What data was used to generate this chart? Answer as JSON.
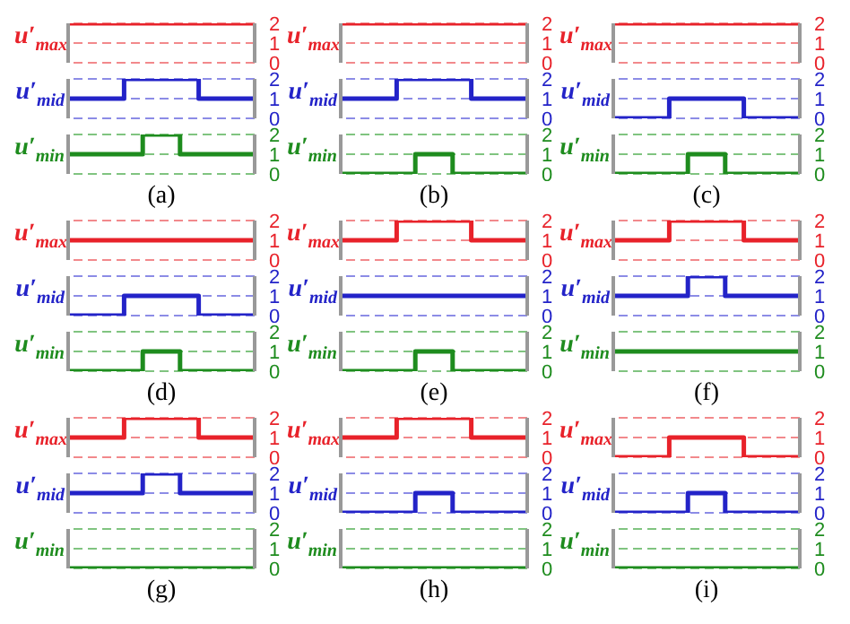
{
  "chart_data": [
    {
      "type": "step",
      "ylabel": "u′$_{max}$",
      "color": "#e8222a",
      "categories": [
        null,
        null,
        null,
        null,
        null,
        null,
        null,
        null,
        null,
        null,
        null
      ],
      "values": [
        2,
        2,
        2,
        2,
        2,
        2,
        2,
        2,
        2,
        2,
        2
      ],
      "ylim": [
        0,
        2
      ],
      "yticks": [
        0,
        1,
        2
      ],
      "ref_lines": [
        {
          "axis": "y",
          "value": 0,
          "color": "#f2898c",
          "line_style": "dashed"
        },
        {
          "axis": "y",
          "value": 1,
          "color": "#f2898c",
          "line_style": "dashed"
        },
        {
          "axis": "y",
          "value": 2,
          "color": "#f2898c",
          "line_style": "dashed"
        }
      ]
    },
    {
      "type": "step",
      "ylabel": "u′$_{mid}$",
      "color": "#2323c8",
      "categories": [
        null,
        null,
        null,
        null,
        null,
        null,
        null,
        null,
        null,
        null,
        null
      ],
      "values": [
        1,
        1,
        1,
        2,
        2,
        2,
        2,
        1,
        1,
        1,
        1
      ],
      "ylim": [
        0,
        2
      ],
      "yticks": [
        0,
        1,
        2
      ],
      "ref_lines": [
        {
          "axis": "y",
          "value": 0,
          "color": "#8c8ce6",
          "line_style": "dashed"
        },
        {
          "axis": "y",
          "value": 1,
          "color": "#8c8ce6",
          "line_style": "dashed"
        },
        {
          "axis": "y",
          "value": 2,
          "color": "#8c8ce6",
          "line_style": "dashed"
        }
      ]
    },
    {
      "type": "step",
      "ylabel": "u′$_{min}$",
      "color": "#1e8c1e",
      "categories": [
        null,
        null,
        null,
        null,
        null,
        null,
        null,
        null,
        null,
        null,
        null
      ],
      "values": [
        1,
        1,
        1,
        1,
        2,
        2,
        1,
        1,
        1,
        1,
        1
      ],
      "ylim": [
        0,
        2
      ],
      "yticks": [
        0,
        1,
        2
      ],
      "ref_lines": [
        {
          "axis": "y",
          "value": 0,
          "color": "#80c480",
          "line_style": "dashed"
        },
        {
          "axis": "y",
          "value": 1,
          "color": "#80c480",
          "line_style": "dashed"
        },
        {
          "axis": "y",
          "value": 2,
          "color": "#80c480",
          "line_style": "dashed"
        }
      ],
      "annotations": [
        "(a)"
      ]
    },
    {
      "type": "step",
      "ylabel": "u′$_{max}$",
      "color": "#e8222a",
      "categories": [
        null,
        null,
        null,
        null,
        null,
        null,
        null,
        null,
        null,
        null,
        null
      ],
      "values": [
        2,
        2,
        2,
        2,
        2,
        2,
        2,
        2,
        2,
        2,
        2
      ],
      "ylim": [
        0,
        2
      ],
      "yticks": [
        0,
        1,
        2
      ],
      "ref_lines": [
        {
          "axis": "y",
          "value": 0,
          "color": "#f2898c",
          "line_style": "dashed"
        },
        {
          "axis": "y",
          "value": 1,
          "color": "#f2898c",
          "line_style": "dashed"
        },
        {
          "axis": "y",
          "value": 2,
          "color": "#f2898c",
          "line_style": "dashed"
        }
      ]
    },
    {
      "type": "step",
      "ylabel": "u′$_{mid}$",
      "color": "#2323c8",
      "categories": [
        null,
        null,
        null,
        null,
        null,
        null,
        null,
        null,
        null,
        null,
        null
      ],
      "values": [
        1,
        1,
        1,
        2,
        2,
        2,
        2,
        1,
        1,
        1,
        1
      ],
      "ylim": [
        0,
        2
      ],
      "yticks": [
        0,
        1,
        2
      ],
      "ref_lines": [
        {
          "axis": "y",
          "value": 0,
          "color": "#8c8ce6",
          "line_style": "dashed"
        },
        {
          "axis": "y",
          "value": 1,
          "color": "#8c8ce6",
          "line_style": "dashed"
        },
        {
          "axis": "y",
          "value": 2,
          "color": "#8c8ce6",
          "line_style": "dashed"
        }
      ]
    },
    {
      "type": "step",
      "ylabel": "u′$_{min}$",
      "color": "#1e8c1e",
      "categories": [
        null,
        null,
        null,
        null,
        null,
        null,
        null,
        null,
        null,
        null,
        null
      ],
      "values": [
        0,
        0,
        0,
        0,
        1,
        1,
        0,
        0,
        0,
        0,
        0
      ],
      "ylim": [
        0,
        2
      ],
      "yticks": [
        0,
        1,
        2
      ],
      "ref_lines": [
        {
          "axis": "y",
          "value": 0,
          "color": "#80c480",
          "line_style": "dashed"
        },
        {
          "axis": "y",
          "value": 1,
          "color": "#80c480",
          "line_style": "dashed"
        },
        {
          "axis": "y",
          "value": 2,
          "color": "#80c480",
          "line_style": "dashed"
        }
      ],
      "annotations": [
        "(b)"
      ]
    },
    {
      "type": "step",
      "ylabel": "u′$_{max}$",
      "color": "#e8222a",
      "categories": [
        null,
        null,
        null,
        null,
        null,
        null,
        null,
        null,
        null,
        null,
        null
      ],
      "values": [
        2,
        2,
        2,
        2,
        2,
        2,
        2,
        2,
        2,
        2,
        2
      ],
      "ylim": [
        0,
        2
      ],
      "yticks": [
        0,
        1,
        2
      ],
      "ref_lines": [
        {
          "axis": "y",
          "value": 0,
          "color": "#f2898c",
          "line_style": "dashed"
        },
        {
          "axis": "y",
          "value": 1,
          "color": "#f2898c",
          "line_style": "dashed"
        },
        {
          "axis": "y",
          "value": 2,
          "color": "#f2898c",
          "line_style": "dashed"
        }
      ]
    },
    {
      "type": "step",
      "ylabel": "u′$_{mid}$",
      "color": "#2323c8",
      "categories": [
        null,
        null,
        null,
        null,
        null,
        null,
        null,
        null,
        null,
        null,
        null
      ],
      "values": [
        0,
        0,
        0,
        1,
        1,
        1,
        1,
        0,
        0,
        0,
        0
      ],
      "ylim": [
        0,
        2
      ],
      "yticks": [
        0,
        1,
        2
      ],
      "ref_lines": [
        {
          "axis": "y",
          "value": 0,
          "color": "#8c8ce6",
          "line_style": "dashed"
        },
        {
          "axis": "y",
          "value": 1,
          "color": "#8c8ce6",
          "line_style": "dashed"
        },
        {
          "axis": "y",
          "value": 2,
          "color": "#8c8ce6",
          "line_style": "dashed"
        }
      ]
    },
    {
      "type": "step",
      "ylabel": "u′$_{min}$",
      "color": "#1e8c1e",
      "categories": [
        null,
        null,
        null,
        null,
        null,
        null,
        null,
        null,
        null,
        null,
        null
      ],
      "values": [
        0,
        0,
        0,
        0,
        1,
        1,
        0,
        0,
        0,
        0,
        0
      ],
      "ylim": [
        0,
        2
      ],
      "yticks": [
        0,
        1,
        2
      ],
      "ref_lines": [
        {
          "axis": "y",
          "value": 0,
          "color": "#80c480",
          "line_style": "dashed"
        },
        {
          "axis": "y",
          "value": 1,
          "color": "#80c480",
          "line_style": "dashed"
        },
        {
          "axis": "y",
          "value": 2,
          "color": "#80c480",
          "line_style": "dashed"
        }
      ],
      "annotations": [
        "(c)"
      ]
    },
    {
      "type": "step",
      "ylabel": "u′$_{max}$",
      "color": "#e8222a",
      "categories": [
        null,
        null,
        null,
        null,
        null,
        null,
        null,
        null,
        null,
        null,
        null
      ],
      "values": [
        1,
        1,
        1,
        1,
        1,
        1,
        1,
        1,
        1,
        1,
        1
      ],
      "ylim": [
        0,
        2
      ],
      "yticks": [
        0,
        1,
        2
      ],
      "ref_lines": [
        {
          "axis": "y",
          "value": 0,
          "color": "#f2898c",
          "line_style": "dashed"
        },
        {
          "axis": "y",
          "value": 2,
          "color": "#f2898c",
          "line_style": "dashed"
        }
      ]
    },
    {
      "type": "step",
      "ylabel": "u′$_{mid}$",
      "color": "#2323c8",
      "categories": [
        null,
        null,
        null,
        null,
        null,
        null,
        null,
        null,
        null,
        null,
        null
      ],
      "values": [
        0,
        0,
        0,
        1,
        1,
        1,
        1,
        0,
        0,
        0,
        0
      ],
      "ylim": [
        0,
        2
      ],
      "yticks": [
        0,
        1,
        2
      ],
      "ref_lines": [
        {
          "axis": "y",
          "value": 0,
          "color": "#8c8ce6",
          "line_style": "dashed"
        },
        {
          "axis": "y",
          "value": 1,
          "color": "#8c8ce6",
          "line_style": "dashed"
        },
        {
          "axis": "y",
          "value": 2,
          "color": "#8c8ce6",
          "line_style": "dashed"
        }
      ]
    },
    {
      "type": "step",
      "ylabel": "u′$_{min}$",
      "color": "#1e8c1e",
      "categories": [
        null,
        null,
        null,
        null,
        null,
        null,
        null,
        null,
        null,
        null,
        null
      ],
      "values": [
        0,
        0,
        0,
        0,
        1,
        1,
        0,
        0,
        0,
        0,
        0
      ],
      "ylim": [
        0,
        2
      ],
      "yticks": [
        0,
        1,
        2
      ],
      "ref_lines": [
        {
          "axis": "y",
          "value": 0,
          "color": "#80c480",
          "line_style": "dashed"
        },
        {
          "axis": "y",
          "value": 1,
          "color": "#80c480",
          "line_style": "dashed"
        },
        {
          "axis": "y",
          "value": 2,
          "color": "#80c480",
          "line_style": "dashed"
        }
      ],
      "annotations": [
        "(d)"
      ]
    },
    {
      "type": "step",
      "ylabel": "u′$_{max}$",
      "color": "#e8222a",
      "categories": [
        null,
        null,
        null,
        null,
        null,
        null,
        null,
        null,
        null,
        null,
        null
      ],
      "values": [
        1,
        1,
        1,
        2,
        2,
        2,
        2,
        1,
        1,
        1,
        1
      ],
      "ylim": [
        0,
        2
      ],
      "yticks": [
        0,
        1,
        2
      ],
      "ref_lines": [
        {
          "axis": "y",
          "value": 0,
          "color": "#f2898c",
          "line_style": "dashed"
        },
        {
          "axis": "y",
          "value": 1,
          "color": "#f2898c",
          "line_style": "dashed"
        },
        {
          "axis": "y",
          "value": 2,
          "color": "#f2898c",
          "line_style": "dashed"
        }
      ]
    },
    {
      "type": "step",
      "ylabel": "u′$_{mid}$",
      "color": "#2323c8",
      "categories": [
        null,
        null,
        null,
        null,
        null,
        null,
        null,
        null,
        null,
        null,
        null
      ],
      "values": [
        1,
        1,
        1,
        1,
        1,
        1,
        1,
        1,
        1,
        1,
        1
      ],
      "ylim": [
        0,
        2
      ],
      "yticks": [
        0,
        1,
        2
      ],
      "ref_lines": [
        {
          "axis": "y",
          "value": 0,
          "color": "#8c8ce6",
          "line_style": "dashed"
        },
        {
          "axis": "y",
          "value": 2,
          "color": "#8c8ce6",
          "line_style": "dashed"
        }
      ]
    },
    {
      "type": "step",
      "ylabel": "u′$_{min}$",
      "color": "#1e8c1e",
      "categories": [
        null,
        null,
        null,
        null,
        null,
        null,
        null,
        null,
        null,
        null,
        null
      ],
      "values": [
        0,
        0,
        0,
        0,
        1,
        1,
        0,
        0,
        0,
        0,
        0
      ],
      "ylim": [
        0,
        2
      ],
      "yticks": [
        0,
        1,
        2
      ],
      "ref_lines": [
        {
          "axis": "y",
          "value": 0,
          "color": "#80c480",
          "line_style": "dashed"
        },
        {
          "axis": "y",
          "value": 1,
          "color": "#80c480",
          "line_style": "dashed"
        },
        {
          "axis": "y",
          "value": 2,
          "color": "#80c480",
          "line_style": "dashed"
        }
      ],
      "annotations": [
        "(e)"
      ]
    },
    {
      "type": "step",
      "ylabel": "u′$_{max}$",
      "color": "#e8222a",
      "categories": [
        null,
        null,
        null,
        null,
        null,
        null,
        null,
        null,
        null,
        null,
        null
      ],
      "values": [
        1,
        1,
        1,
        2,
        2,
        2,
        2,
        1,
        1,
        1,
        1
      ],
      "ylim": [
        0,
        2
      ],
      "yticks": [
        0,
        1,
        2
      ],
      "ref_lines": [
        {
          "axis": "y",
          "value": 0,
          "color": "#f2898c",
          "line_style": "dashed"
        },
        {
          "axis": "y",
          "value": 1,
          "color": "#f2898c",
          "line_style": "dashed"
        },
        {
          "axis": "y",
          "value": 2,
          "color": "#f2898c",
          "line_style": "dashed"
        }
      ]
    },
    {
      "type": "step",
      "ylabel": "u′$_{mid}$",
      "color": "#2323c8",
      "categories": [
        null,
        null,
        null,
        null,
        null,
        null,
        null,
        null,
        null,
        null,
        null
      ],
      "values": [
        1,
        1,
        1,
        1,
        2,
        2,
        1,
        1,
        1,
        1,
        1
      ],
      "ylim": [
        0,
        2
      ],
      "yticks": [
        0,
        1,
        2
      ],
      "ref_lines": [
        {
          "axis": "y",
          "value": 0,
          "color": "#8c8ce6",
          "line_style": "dashed"
        },
        {
          "axis": "y",
          "value": 1,
          "color": "#8c8ce6",
          "line_style": "dashed"
        },
        {
          "axis": "y",
          "value": 2,
          "color": "#8c8ce6",
          "line_style": "dashed"
        }
      ]
    },
    {
      "type": "step",
      "ylabel": "u′$_{min}$",
      "color": "#1e8c1e",
      "categories": [
        null,
        null,
        null,
        null,
        null,
        null,
        null,
        null,
        null,
        null,
        null
      ],
      "values": [
        1,
        1,
        1,
        1,
        1,
        1,
        1,
        1,
        1,
        1,
        1
      ],
      "ylim": [
        0,
        2
      ],
      "yticks": [
        0,
        1,
        2
      ],
      "ref_lines": [
        {
          "axis": "y",
          "value": 0,
          "color": "#80c480",
          "line_style": "dashed"
        },
        {
          "axis": "y",
          "value": 2,
          "color": "#80c480",
          "line_style": "dashed"
        }
      ],
      "annotations": [
        "(f)"
      ]
    },
    {
      "type": "step",
      "ylabel": "u′$_{max}$",
      "color": "#e8222a",
      "categories": [
        null,
        null,
        null,
        null,
        null,
        null,
        null,
        null,
        null,
        null,
        null
      ],
      "values": [
        1,
        1,
        1,
        2,
        2,
        2,
        2,
        1,
        1,
        1,
        1
      ],
      "ylim": [
        0,
        2
      ],
      "yticks": [
        0,
        1,
        2
      ],
      "ref_lines": [
        {
          "axis": "y",
          "value": 0,
          "color": "#f2898c",
          "line_style": "dashed"
        },
        {
          "axis": "y",
          "value": 1,
          "color": "#f2898c",
          "line_style": "dashed"
        },
        {
          "axis": "y",
          "value": 2,
          "color": "#f2898c",
          "line_style": "dashed"
        }
      ]
    },
    {
      "type": "step",
      "ylabel": "u′$_{mid}$",
      "color": "#2323c8",
      "categories": [
        null,
        null,
        null,
        null,
        null,
        null,
        null,
        null,
        null,
        null,
        null
      ],
      "values": [
        1,
        1,
        1,
        1,
        2,
        2,
        1,
        1,
        1,
        1,
        1
      ],
      "ylim": [
        0,
        2
      ],
      "yticks": [
        0,
        1,
        2
      ],
      "ref_lines": [
        {
          "axis": "y",
          "value": 0,
          "color": "#8c8ce6",
          "line_style": "dashed"
        },
        {
          "axis": "y",
          "value": 1,
          "color": "#8c8ce6",
          "line_style": "dashed"
        },
        {
          "axis": "y",
          "value": 2,
          "color": "#8c8ce6",
          "line_style": "dashed"
        }
      ]
    },
    {
      "type": "step",
      "ylabel": "u′$_{min}$",
      "color": "#1e8c1e",
      "categories": [
        null,
        null,
        null,
        null,
        null,
        null,
        null,
        null,
        null,
        null,
        null
      ],
      "values": [
        0,
        0,
        0,
        0,
        0,
        0,
        0,
        0,
        0,
        0,
        0
      ],
      "ylim": [
        0,
        2
      ],
      "yticks": [
        0,
        1,
        2
      ],
      "ref_lines": [
        {
          "axis": "y",
          "value": 0,
          "color": "#80c480",
          "line_style": "dashed"
        },
        {
          "axis": "y",
          "value": 1,
          "color": "#80c480",
          "line_style": "dashed"
        },
        {
          "axis": "y",
          "value": 2,
          "color": "#80c480",
          "line_style": "dashed"
        }
      ],
      "annotations": [
        "(g)"
      ]
    },
    {
      "type": "step",
      "ylabel": "u′$_{max}$",
      "color": "#e8222a",
      "categories": [
        null,
        null,
        null,
        null,
        null,
        null,
        null,
        null,
        null,
        null,
        null
      ],
      "values": [
        1,
        1,
        1,
        2,
        2,
        2,
        2,
        1,
        1,
        1,
        1
      ],
      "ylim": [
        0,
        2
      ],
      "yticks": [
        0,
        1,
        2
      ],
      "ref_lines": [
        {
          "axis": "y",
          "value": 0,
          "color": "#f2898c",
          "line_style": "dashed"
        },
        {
          "axis": "y",
          "value": 1,
          "color": "#f2898c",
          "line_style": "dashed"
        },
        {
          "axis": "y",
          "value": 2,
          "color": "#f2898c",
          "line_style": "dashed"
        }
      ]
    },
    {
      "type": "step",
      "ylabel": "u′$_{mid}$",
      "color": "#2323c8",
      "categories": [
        null,
        null,
        null,
        null,
        null,
        null,
        null,
        null,
        null,
        null,
        null
      ],
      "values": [
        0,
        0,
        0,
        0,
        1,
        1,
        0,
        0,
        0,
        0,
        0
      ],
      "ylim": [
        0,
        2
      ],
      "yticks": [
        0,
        1,
        2
      ],
      "ref_lines": [
        {
          "axis": "y",
          "value": 0,
          "color": "#8c8ce6",
          "line_style": "dashed"
        },
        {
          "axis": "y",
          "value": 1,
          "color": "#8c8ce6",
          "line_style": "dashed"
        },
        {
          "axis": "y",
          "value": 2,
          "color": "#8c8ce6",
          "line_style": "dashed"
        }
      ]
    },
    {
      "type": "step",
      "ylabel": "u′$_{min}$",
      "color": "#1e8c1e",
      "categories": [
        null,
        null,
        null,
        null,
        null,
        null,
        null,
        null,
        null,
        null,
        null
      ],
      "values": [
        0,
        0,
        0,
        0,
        0,
        0,
        0,
        0,
        0,
        0,
        0
      ],
      "ylim": [
        0,
        2
      ],
      "yticks": [
        0,
        1,
        2
      ],
      "ref_lines": [
        {
          "axis": "y",
          "value": 0,
          "color": "#80c480",
          "line_style": "dashed"
        },
        {
          "axis": "y",
          "value": 1,
          "color": "#80c480",
          "line_style": "dashed"
        },
        {
          "axis": "y",
          "value": 2,
          "color": "#80c480",
          "line_style": "dashed"
        }
      ],
      "annotations": [
        "(h)"
      ]
    },
    {
      "type": "step",
      "ylabel": "u′$_{max}$",
      "color": "#e8222a",
      "categories": [
        null,
        null,
        null,
        null,
        null,
        null,
        null,
        null,
        null,
        null,
        null
      ],
      "values": [
        0,
        0,
        0,
        1,
        1,
        1,
        1,
        0,
        0,
        0,
        0
      ],
      "ylim": [
        0,
        2
      ],
      "yticks": [
        0,
        1,
        2
      ],
      "ref_lines": [
        {
          "axis": "y",
          "value": 0,
          "color": "#f2898c",
          "line_style": "dashed"
        },
        {
          "axis": "y",
          "value": 1,
          "color": "#f2898c",
          "line_style": "dashed"
        },
        {
          "axis": "y",
          "value": 2,
          "color": "#f2898c",
          "line_style": "dashed"
        }
      ]
    },
    {
      "type": "step",
      "ylabel": "u′$_{mid}$",
      "color": "#2323c8",
      "categories": [
        null,
        null,
        null,
        null,
        null,
        null,
        null,
        null,
        null,
        null,
        null
      ],
      "values": [
        0,
        0,
        0,
        0,
        1,
        1,
        0,
        0,
        0,
        0,
        0
      ],
      "ylim": [
        0,
        2
      ],
      "yticks": [
        0,
        1,
        2
      ],
      "ref_lines": [
        {
          "axis": "y",
          "value": 0,
          "color": "#8c8ce6",
          "line_style": "dashed"
        },
        {
          "axis": "y",
          "value": 1,
          "color": "#8c8ce6",
          "line_style": "dashed"
        },
        {
          "axis": "y",
          "value": 2,
          "color": "#8c8ce6",
          "line_style": "dashed"
        }
      ]
    },
    {
      "type": "step",
      "ylabel": "u′$_{min}$",
      "color": "#1e8c1e",
      "categories": [
        null,
        null,
        null,
        null,
        null,
        null,
        null,
        null,
        null,
        null,
        null
      ],
      "values": [
        0,
        0,
        0,
        0,
        0,
        0,
        0,
        0,
        0,
        0,
        0
      ],
      "ylim": [
        0,
        2
      ],
      "yticks": [
        0,
        1,
        2
      ],
      "ref_lines": [
        {
          "axis": "y",
          "value": 0,
          "color": "#80c480",
          "line_style": "dashed"
        },
        {
          "axis": "y",
          "value": 1,
          "color": "#80c480",
          "line_style": "dashed"
        },
        {
          "axis": "y",
          "value": 2,
          "color": "#80c480",
          "line_style": "dashed"
        }
      ],
      "annotations": [
        "(i)"
      ]
    }
  ]
}
